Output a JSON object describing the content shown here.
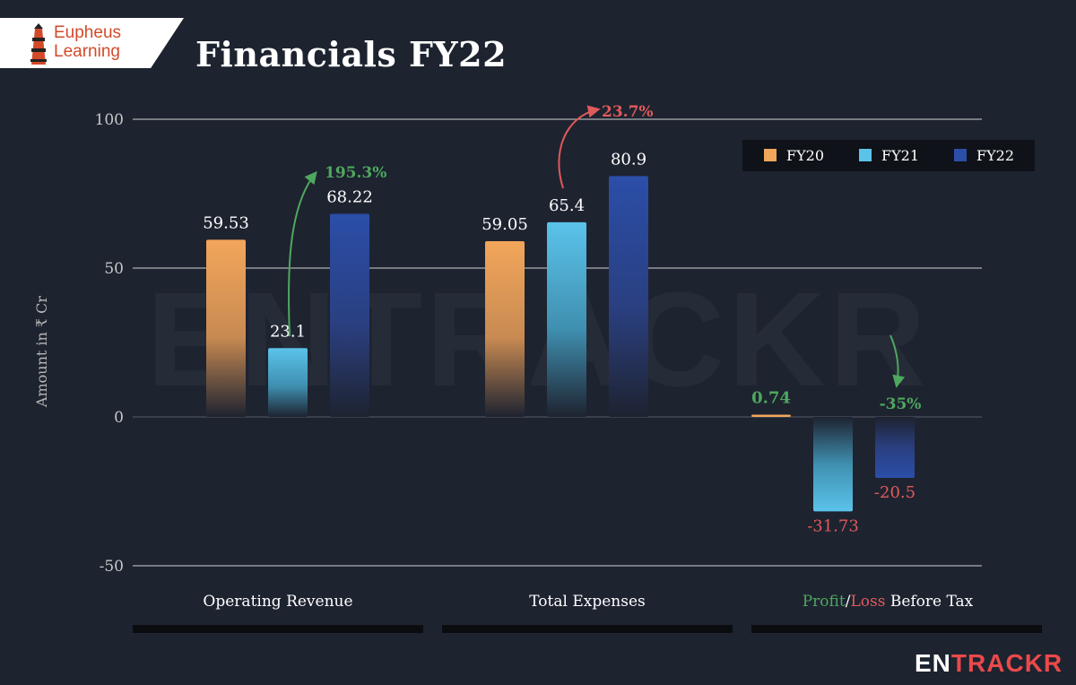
{
  "logo": {
    "line1": "Eupheus",
    "line2": "Learning"
  },
  "title": "Financials FY22",
  "brand": {
    "part1": "EN",
    "part2": "TR",
    "a": "A",
    "part3": "CKR"
  },
  "watermark": "ENTRACKR",
  "colors": {
    "background": "#1e2330",
    "fy20": "#f2a65a",
    "fy21": "#5bc3ea",
    "fy22": "#2b4ea8",
    "positive": "#4ea85e",
    "negative": "#e05a5a",
    "text": "#ffffff",
    "axis": "#c8c8c8"
  },
  "chart_data": {
    "type": "bar",
    "title": "Financials FY22",
    "ylabel": "Amount in ₹ Cr",
    "xlabel": "",
    "ylim": [
      -50,
      100
    ],
    "yticks": [
      100,
      50,
      0,
      -50
    ],
    "legend": {
      "placement": "top-right",
      "entries": [
        "FY20",
        "FY21",
        "FY22"
      ]
    },
    "categories": [
      "Operating Revenue",
      "Total Expenses",
      "Profit/Loss Before Tax"
    ],
    "category_label_parts": {
      "profit": "Profit",
      "slash": "/",
      "loss": "Loss",
      "rest": " Before Tax"
    },
    "series": [
      {
        "name": "FY20",
        "values": [
          59.53,
          59.05,
          0.74
        ],
        "labels": [
          "59.53",
          "59.05",
          "0.74"
        ]
      },
      {
        "name": "FY21",
        "values": [
          23.1,
          65.4,
          -31.73
        ],
        "labels": [
          "23.1",
          "65.4",
          "-31.73"
        ]
      },
      {
        "name": "FY22",
        "values": [
          68.22,
          80.9,
          -20.5
        ],
        "labels": [
          "68.22",
          "80.9",
          "-20.5"
        ]
      }
    ],
    "annotations": [
      {
        "text": "195.3%",
        "category": "Operating Revenue",
        "trend": "up"
      },
      {
        "text": "23.7%",
        "category": "Total Expenses",
        "trend": "up"
      },
      {
        "text": "-35%",
        "category": "Profit/Loss Before Tax",
        "trend": "down"
      }
    ]
  }
}
